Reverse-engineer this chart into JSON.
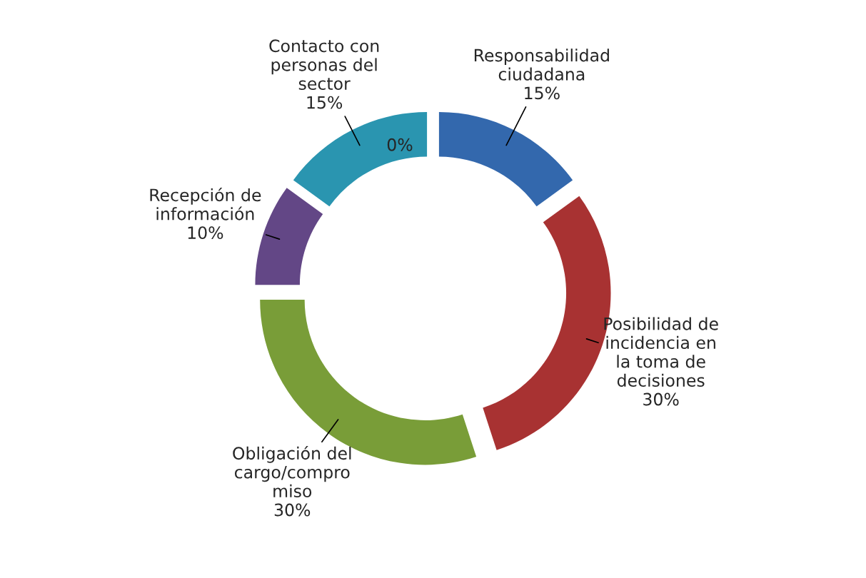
{
  "chart_data": {
    "type": "donut",
    "categories": [
      "Responsabilidad\nciudadana",
      "Posibilidad de\nincidencia en\nla toma de\ndecisiones",
      "Obligación del\ncargo/compro\nmiso",
      "Recepción de\ninformación",
      "Contacto con\npersonas del\nsector",
      null
    ],
    "values": [
      15,
      30,
      30,
      10,
      15,
      0
    ],
    "value_labels": [
      "15%",
      "30%",
      "30%",
      "10%",
      "15%",
      "0%"
    ],
    "colors": [
      "#3368ad",
      "#a83232",
      "#799d38",
      "#634786",
      "#2a95b0",
      "#2a95b0"
    ]
  }
}
